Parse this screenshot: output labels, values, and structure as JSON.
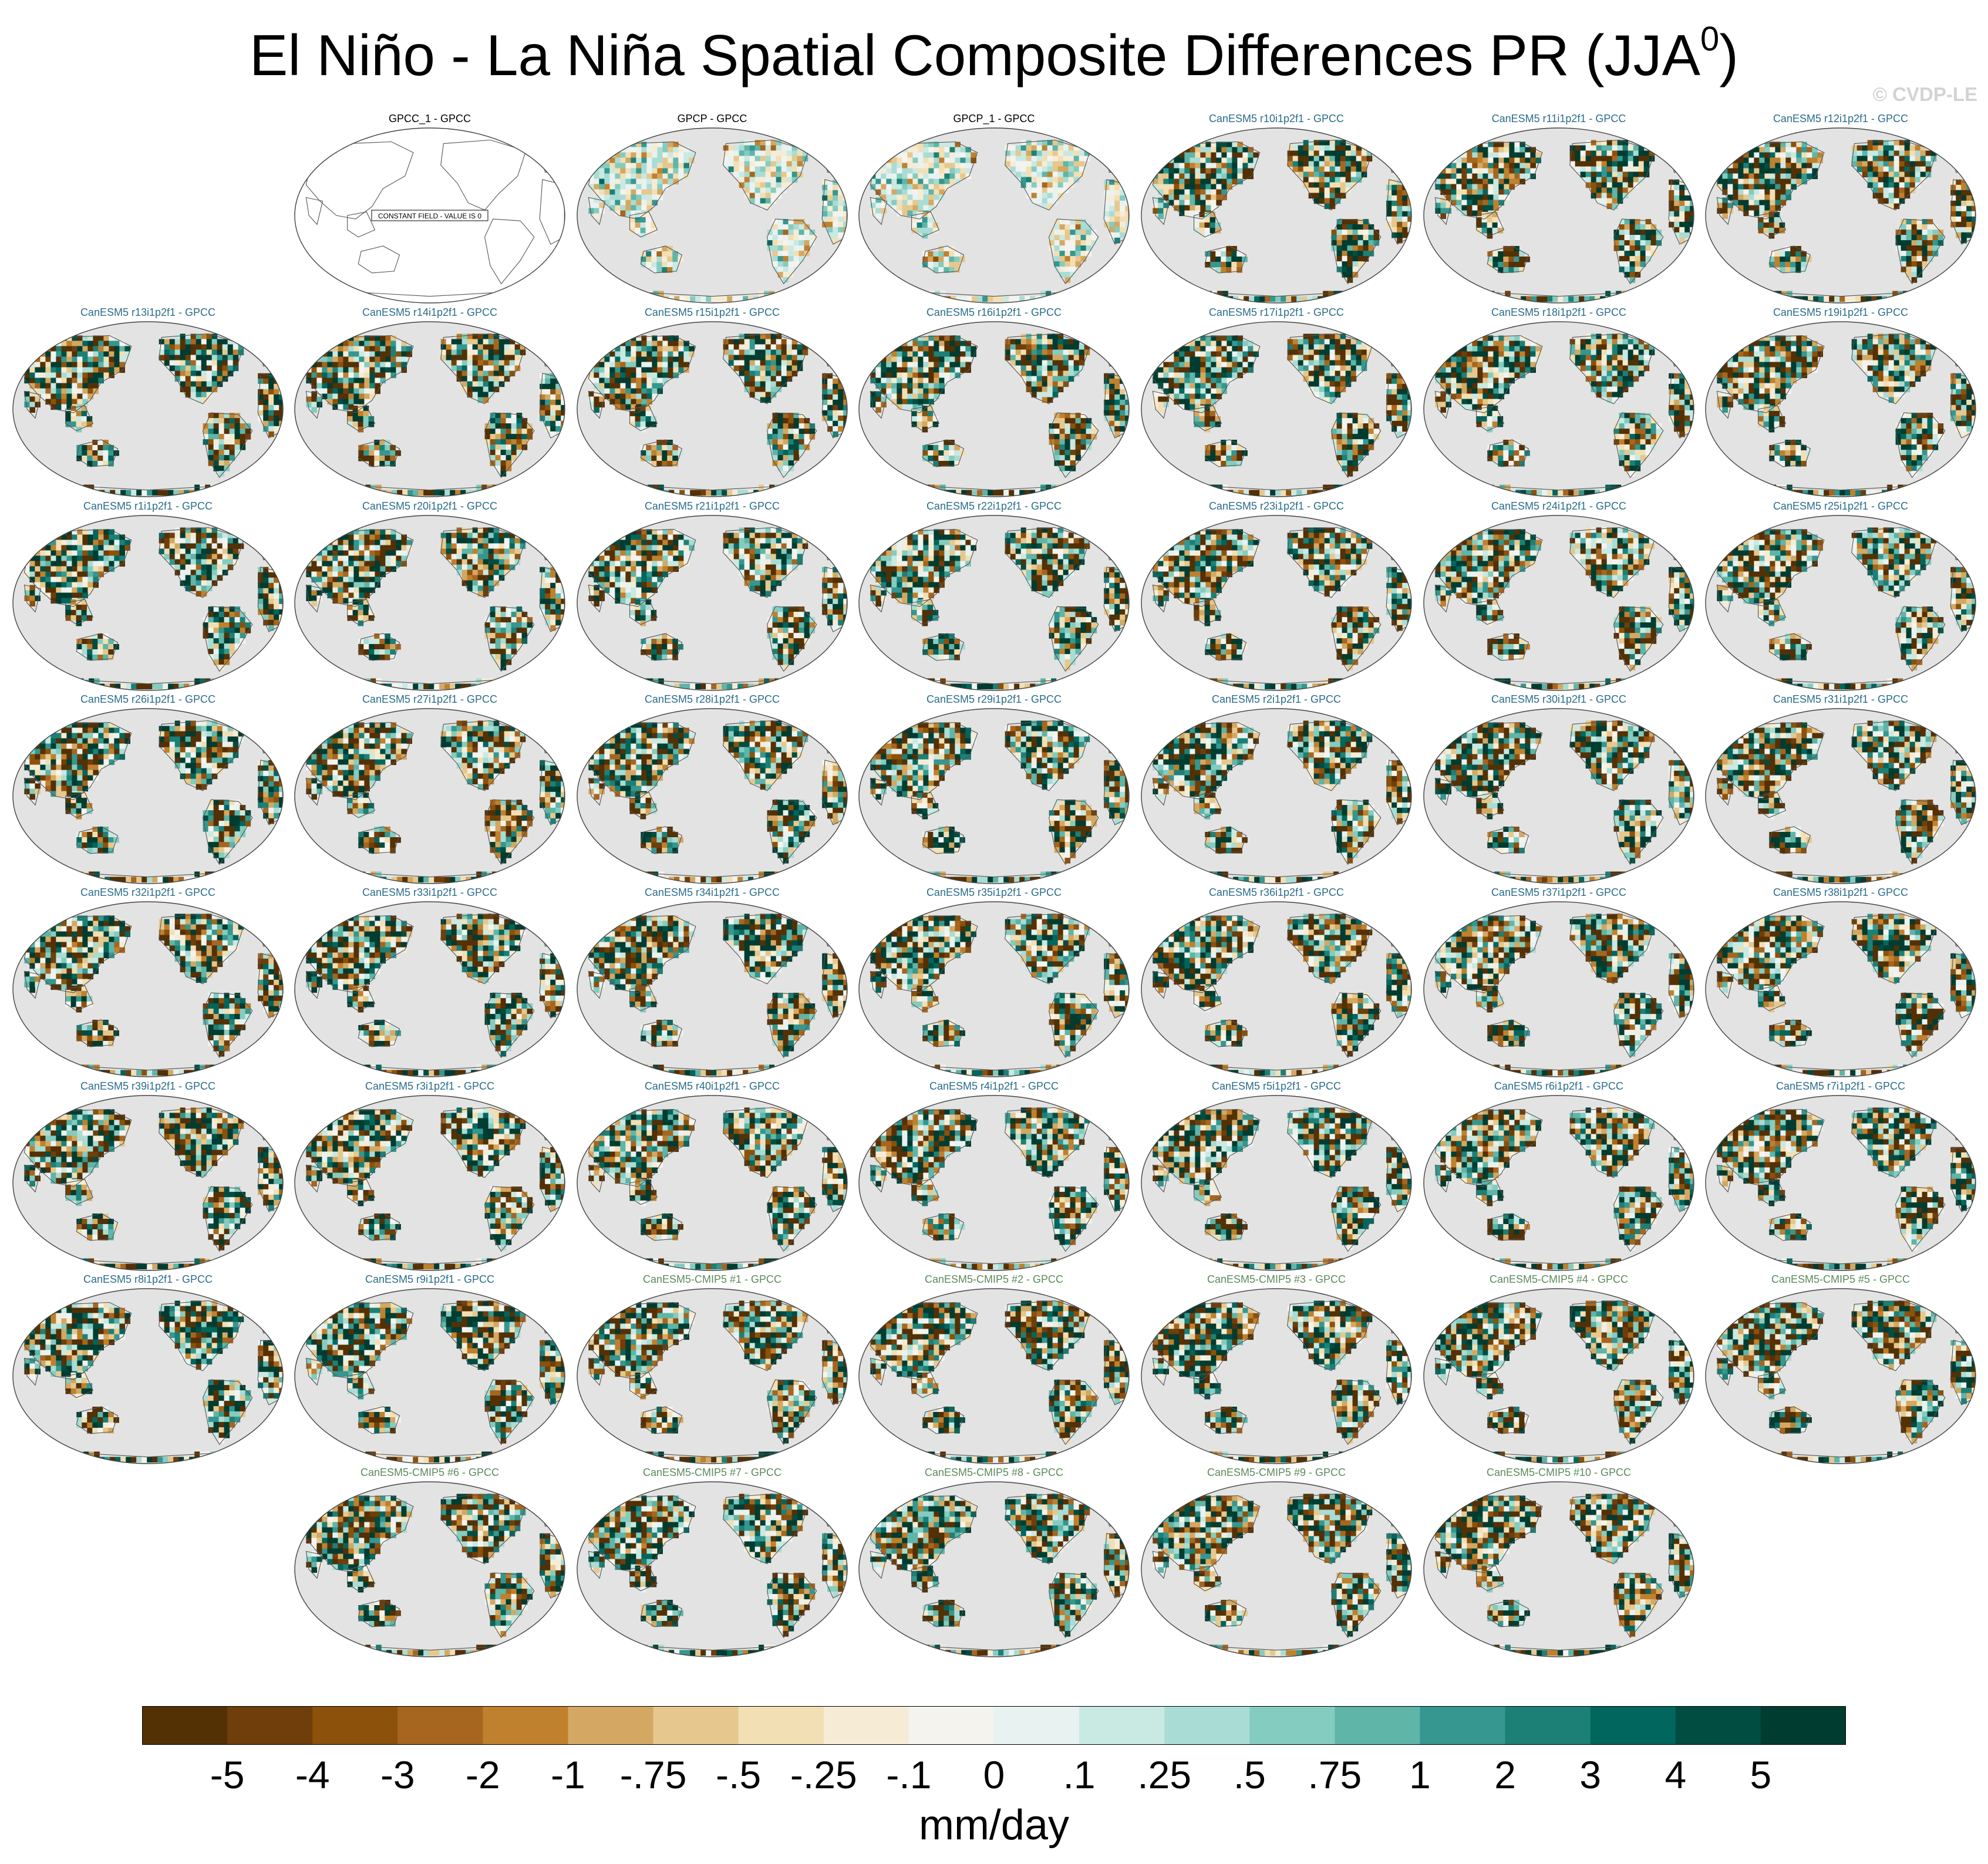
{
  "title": "El Niño - La Niña Spatial Composite Differences PR (JJA",
  "title_sup": "0",
  "title_close": ")",
  "watermark": "© CVDP-LE",
  "panels": [
    {
      "label": "GPCC_1 - GPCC",
      "kind": "obs",
      "constant": true,
      "note": "CONSTANT FIELD - VALUE IS 0",
      "row": 0,
      "col": 1
    },
    {
      "label": "GPCP - GPCC",
      "kind": "obs",
      "row": 0,
      "col": 2
    },
    {
      "label": "GPCP_1 - GPCC",
      "kind": "obs",
      "row": 0,
      "col": 3
    },
    {
      "label": "CanESM5 r10i1p2f1 - GPCC",
      "kind": "le",
      "row": 0,
      "col": 4
    },
    {
      "label": "CanESM5 r11i1p2f1 - GPCC",
      "kind": "le",
      "row": 0,
      "col": 5
    },
    {
      "label": "CanESM5 r12i1p2f1 - GPCC",
      "kind": "le",
      "row": 0,
      "col": 6
    },
    {
      "label": "CanESM5 r13i1p2f1 - GPCC",
      "kind": "le",
      "row": 1,
      "col": 0
    },
    {
      "label": "CanESM5 r14i1p2f1 - GPCC",
      "kind": "le",
      "row": 1,
      "col": 1
    },
    {
      "label": "CanESM5 r15i1p2f1 - GPCC",
      "kind": "le",
      "row": 1,
      "col": 2
    },
    {
      "label": "CanESM5 r16i1p2f1 - GPCC",
      "kind": "le",
      "row": 1,
      "col": 3
    },
    {
      "label": "CanESM5 r17i1p2f1 - GPCC",
      "kind": "le",
      "row": 1,
      "col": 4
    },
    {
      "label": "CanESM5 r18i1p2f1 - GPCC",
      "kind": "le",
      "row": 1,
      "col": 5
    },
    {
      "label": "CanESM5 r19i1p2f1 - GPCC",
      "kind": "le",
      "row": 1,
      "col": 6
    },
    {
      "label": "CanESM5 r1i1p2f1 - GPCC",
      "kind": "le",
      "row": 2,
      "col": 0
    },
    {
      "label": "CanESM5 r20i1p2f1 - GPCC",
      "kind": "le",
      "row": 2,
      "col": 1
    },
    {
      "label": "CanESM5 r21i1p2f1 - GPCC",
      "kind": "le",
      "row": 2,
      "col": 2
    },
    {
      "label": "CanESM5 r22i1p2f1 - GPCC",
      "kind": "le",
      "row": 2,
      "col": 3
    },
    {
      "label": "CanESM5 r23i1p2f1 - GPCC",
      "kind": "le",
      "row": 2,
      "col": 4
    },
    {
      "label": "CanESM5 r24i1p2f1 - GPCC",
      "kind": "le",
      "row": 2,
      "col": 5
    },
    {
      "label": "CanESM5 r25i1p2f1 - GPCC",
      "kind": "le",
      "row": 2,
      "col": 6
    },
    {
      "label": "CanESM5 r26i1p2f1 - GPCC",
      "kind": "le",
      "row": 3,
      "col": 0
    },
    {
      "label": "CanESM5 r27i1p2f1 - GPCC",
      "kind": "le",
      "row": 3,
      "col": 1
    },
    {
      "label": "CanESM5 r28i1p2f1 - GPCC",
      "kind": "le",
      "row": 3,
      "col": 2
    },
    {
      "label": "CanESM5 r29i1p2f1 - GPCC",
      "kind": "le",
      "row": 3,
      "col": 3
    },
    {
      "label": "CanESM5 r2i1p2f1 - GPCC",
      "kind": "le",
      "row": 3,
      "col": 4
    },
    {
      "label": "CanESM5 r30i1p2f1 - GPCC",
      "kind": "le",
      "row": 3,
      "col": 5
    },
    {
      "label": "CanESM5 r31i1p2f1 - GPCC",
      "kind": "le",
      "row": 3,
      "col": 6
    },
    {
      "label": "CanESM5 r32i1p2f1 - GPCC",
      "kind": "le",
      "row": 4,
      "col": 0
    },
    {
      "label": "CanESM5 r33i1p2f1 - GPCC",
      "kind": "le",
      "row": 4,
      "col": 1
    },
    {
      "label": "CanESM5 r34i1p2f1 - GPCC",
      "kind": "le",
      "row": 4,
      "col": 2
    },
    {
      "label": "CanESM5 r35i1p2f1 - GPCC",
      "kind": "le",
      "row": 4,
      "col": 3
    },
    {
      "label": "CanESM5 r36i1p2f1 - GPCC",
      "kind": "le",
      "row": 4,
      "col": 4
    },
    {
      "label": "CanESM5 r37i1p2f1 - GPCC",
      "kind": "le",
      "row": 4,
      "col": 5
    },
    {
      "label": "CanESM5 r38i1p2f1 - GPCC",
      "kind": "le",
      "row": 4,
      "col": 6
    },
    {
      "label": "CanESM5 r39i1p2f1 - GPCC",
      "kind": "le",
      "row": 5,
      "col": 0
    },
    {
      "label": "CanESM5 r3i1p2f1 - GPCC",
      "kind": "le",
      "row": 5,
      "col": 1
    },
    {
      "label": "CanESM5 r40i1p2f1 - GPCC",
      "kind": "le",
      "row": 5,
      "col": 2
    },
    {
      "label": "CanESM5 r4i1p2f1 - GPCC",
      "kind": "le",
      "row": 5,
      "col": 3
    },
    {
      "label": "CanESM5 r5i1p2f1 - GPCC",
      "kind": "le",
      "row": 5,
      "col": 4
    },
    {
      "label": "CanESM5 r6i1p2f1 - GPCC",
      "kind": "le",
      "row": 5,
      "col": 5
    },
    {
      "label": "CanESM5 r7i1p2f1 - GPCC",
      "kind": "le",
      "row": 5,
      "col": 6
    },
    {
      "label": "CanESM5 r8i1p2f1 - GPCC",
      "kind": "le",
      "row": 6,
      "col": 0
    },
    {
      "label": "CanESM5 r9i1p2f1 - GPCC",
      "kind": "le",
      "row": 6,
      "col": 1
    },
    {
      "label": "CanESM5-CMIP5 #1 - GPCC",
      "kind": "cmip",
      "row": 6,
      "col": 2
    },
    {
      "label": "CanESM5-CMIP5 #2 - GPCC",
      "kind": "cmip",
      "row": 6,
      "col": 3
    },
    {
      "label": "CanESM5-CMIP5 #3 - GPCC",
      "kind": "cmip",
      "row": 6,
      "col": 4
    },
    {
      "label": "CanESM5-CMIP5 #4 - GPCC",
      "kind": "cmip",
      "row": 6,
      "col": 5
    },
    {
      "label": "CanESM5-CMIP5 #5 - GPCC",
      "kind": "cmip",
      "row": 6,
      "col": 6
    },
    {
      "label": "CanESM5-CMIP5 #6 - GPCC",
      "kind": "cmip",
      "row": 7,
      "col": 1
    },
    {
      "label": "CanESM5-CMIP5 #7 - GPCC",
      "kind": "cmip",
      "row": 7,
      "col": 2
    },
    {
      "label": "CanESM5-CMIP5 #8 - GPCC",
      "kind": "cmip",
      "row": 7,
      "col": 3
    },
    {
      "label": "CanESM5-CMIP5 #9 - GPCC",
      "kind": "cmip",
      "row": 7,
      "col": 4
    },
    {
      "label": "CanESM5-CMIP5 #10 - GPCC",
      "kind": "cmip",
      "row": 7,
      "col": 5
    }
  ],
  "colorbar": {
    "ticks": [
      "-5",
      "-4",
      "-3",
      "-2",
      "-1",
      "-.75",
      "-.5",
      "-.25",
      "-.1",
      "0",
      ".1",
      ".25",
      ".5",
      ".75",
      "1",
      "2",
      "3",
      "4",
      "5"
    ],
    "colors": [
      "#543005",
      "#6f3e0a",
      "#8c510a",
      "#a66620",
      "#bf812d",
      "#d4a862",
      "#e6c88e",
      "#f2dfb4",
      "#f6ecd6",
      "#f5f3ee",
      "#e8f2f1",
      "#c9e9e3",
      "#a9dcd4",
      "#84ccbf",
      "#5eb5a8",
      "#35978f",
      "#1d8077",
      "#01665e",
      "#014d42",
      "#003c30"
    ],
    "units": "mm/day"
  },
  "chart_data": {
    "type": "heatmap",
    "title": "El Niño - La Niña Spatial Composite Differences PR (JJA0)",
    "variable": "PR",
    "season": "JJA",
    "units": "mm/day",
    "contour_levels": [
      -5,
      -4,
      -3,
      -2,
      -1,
      -0.75,
      -0.5,
      -0.25,
      -0.1,
      0,
      0.1,
      0.25,
      0.5,
      0.75,
      1,
      2,
      3,
      4,
      5
    ],
    "panels": 53,
    "layout": "8 rows x 7 columns",
    "note_first_panel": "CONSTANT FIELD - VALUE IS 0"
  }
}
